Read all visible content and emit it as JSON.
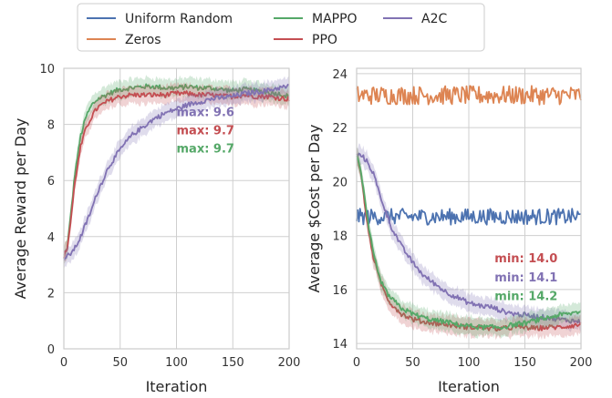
{
  "colors": {
    "uniform_random": "#4c72b0",
    "zeros": "#dd8452",
    "mappo": "#55a868",
    "ppo": "#c44e52",
    "a2c": "#8172b3",
    "grid": "#cfcfcf",
    "frame": "#cccccc"
  },
  "legend": {
    "entries": [
      {
        "key": "uniform_random",
        "label": "Uniform Random"
      },
      {
        "key": "zeros",
        "label": "Zeros"
      },
      {
        "key": "mappo",
        "label": "MAPPO"
      },
      {
        "key": "ppo",
        "label": "PPO"
      },
      {
        "key": "a2c",
        "label": "A2C"
      }
    ]
  },
  "chart_data": [
    {
      "type": "line",
      "xlabel": "Iteration",
      "ylabel": "Average Reward per Day",
      "xlim": [
        0,
        200
      ],
      "ylim": [
        0,
        10
      ],
      "xticks": [
        "0",
        "50",
        "100",
        "150",
        "200"
      ],
      "yticks": [
        "0",
        "2",
        "4",
        "6",
        "8",
        "10"
      ],
      "grid": true,
      "series": [
        {
          "key": "mappo",
          "name": "MAPPO",
          "band": true,
          "x": [
            0,
            3,
            6,
            10,
            15,
            20,
            25,
            30,
            40,
            50,
            60,
            70,
            80,
            90,
            100,
            110,
            120,
            130,
            140,
            150,
            160,
            170,
            180,
            190,
            200
          ],
          "y": [
            3.3,
            3.6,
            4.7,
            6.3,
            7.6,
            8.3,
            8.7,
            8.9,
            9.1,
            9.25,
            9.3,
            9.35,
            9.35,
            9.3,
            9.3,
            9.35,
            9.3,
            9.3,
            9.25,
            9.2,
            9.25,
            9.2,
            9.15,
            9.1,
            9.0
          ]
        },
        {
          "key": "ppo",
          "name": "PPO",
          "band": true,
          "x": [
            0,
            3,
            6,
            10,
            15,
            20,
            25,
            30,
            40,
            50,
            60,
            70,
            80,
            90,
            100,
            110,
            120,
            130,
            140,
            150,
            160,
            170,
            180,
            190,
            200
          ],
          "y": [
            3.3,
            3.6,
            4.5,
            6.0,
            7.2,
            7.9,
            8.3,
            8.6,
            8.85,
            9.0,
            9.05,
            9.05,
            9.05,
            9.05,
            9.1,
            9.1,
            9.05,
            9.05,
            9.0,
            9.0,
            9.05,
            9.0,
            9.0,
            8.95,
            8.9
          ]
        },
        {
          "key": "a2c",
          "name": "A2C",
          "band": true,
          "x": [
            0,
            5,
            10,
            15,
            20,
            25,
            30,
            40,
            50,
            60,
            70,
            80,
            90,
            100,
            110,
            120,
            130,
            140,
            150,
            160,
            170,
            180,
            190,
            200
          ],
          "y": [
            3.2,
            3.35,
            3.6,
            4.0,
            4.5,
            5.0,
            5.6,
            6.5,
            7.1,
            7.6,
            7.9,
            8.2,
            8.4,
            8.55,
            8.7,
            8.8,
            8.9,
            8.95,
            9.0,
            9.1,
            9.15,
            9.2,
            9.3,
            9.35
          ]
        }
      ],
      "annotations": [
        {
          "key": "a2c",
          "text": "max: 9.6",
          "x": 100,
          "y": 8.3
        },
        {
          "key": "ppo",
          "text": "max: 9.7",
          "x": 100,
          "y": 7.65
        },
        {
          "key": "mappo",
          "text": "max: 9.7",
          "x": 100,
          "y": 7.0
        }
      ]
    },
    {
      "type": "line",
      "xlabel": "Iteration",
      "ylabel": "Average $Cost per Day",
      "xlim": [
        0,
        200
      ],
      "ylim": [
        13.8,
        24.2
      ],
      "xticks": [
        "0",
        "50",
        "100",
        "150",
        "200"
      ],
      "yticks": [
        "14",
        "16",
        "18",
        "20",
        "22",
        "24"
      ],
      "grid": true,
      "series": [
        {
          "key": "zeros",
          "name": "Zeros",
          "band": false,
          "noise": 0.35,
          "x": [
            0,
            200
          ],
          "y": [
            23.2,
            23.2
          ]
        },
        {
          "key": "uniform_random",
          "name": "Uniform Random",
          "band": false,
          "noise": 0.3,
          "x": [
            0,
            200
          ],
          "y": [
            18.7,
            18.7
          ]
        },
        {
          "key": "a2c",
          "name": "A2C",
          "band": true,
          "x": [
            0,
            5,
            10,
            15,
            20,
            25,
            30,
            40,
            50,
            60,
            70,
            80,
            90,
            100,
            110,
            120,
            130,
            140,
            150,
            160,
            170,
            180,
            190,
            200
          ],
          "y": [
            21.0,
            20.95,
            20.7,
            20.3,
            19.6,
            19.0,
            18.4,
            17.6,
            17.0,
            16.5,
            16.2,
            15.9,
            15.7,
            15.5,
            15.4,
            15.35,
            15.2,
            15.1,
            15.05,
            15.0,
            14.95,
            14.9,
            14.85,
            14.8
          ]
        },
        {
          "key": "ppo",
          "name": "PPO",
          "band": true,
          "x": [
            0,
            3,
            6,
            10,
            15,
            20,
            25,
            30,
            40,
            50,
            60,
            70,
            80,
            90,
            100,
            110,
            120,
            130,
            140,
            150,
            160,
            170,
            180,
            190,
            200
          ],
          "y": [
            21.0,
            20.5,
            19.6,
            18.3,
            17.2,
            16.4,
            15.9,
            15.5,
            15.1,
            14.9,
            14.8,
            14.75,
            14.7,
            14.65,
            14.6,
            14.6,
            14.55,
            14.55,
            14.6,
            14.6,
            14.55,
            14.6,
            14.6,
            14.65,
            14.7
          ]
        },
        {
          "key": "mappo",
          "name": "MAPPO",
          "band": true,
          "x": [
            0,
            3,
            6,
            10,
            15,
            20,
            25,
            30,
            40,
            50,
            60,
            70,
            80,
            90,
            100,
            110,
            120,
            130,
            140,
            150,
            160,
            170,
            180,
            190,
            200
          ],
          "y": [
            21.0,
            20.6,
            19.7,
            18.5,
            17.3,
            16.5,
            16.0,
            15.7,
            15.3,
            15.1,
            14.95,
            14.85,
            14.8,
            14.7,
            14.65,
            14.6,
            14.6,
            14.6,
            14.7,
            14.75,
            14.85,
            14.95,
            15.05,
            15.1,
            15.2
          ]
        }
      ],
      "annotations": [
        {
          "key": "ppo",
          "text": "min: 14.0",
          "x": 123,
          "y": 17.0
        },
        {
          "key": "a2c",
          "text": "min: 14.1",
          "x": 123,
          "y": 16.3
        },
        {
          "key": "mappo",
          "text": "min: 14.2",
          "x": 123,
          "y": 15.6
        }
      ]
    }
  ]
}
